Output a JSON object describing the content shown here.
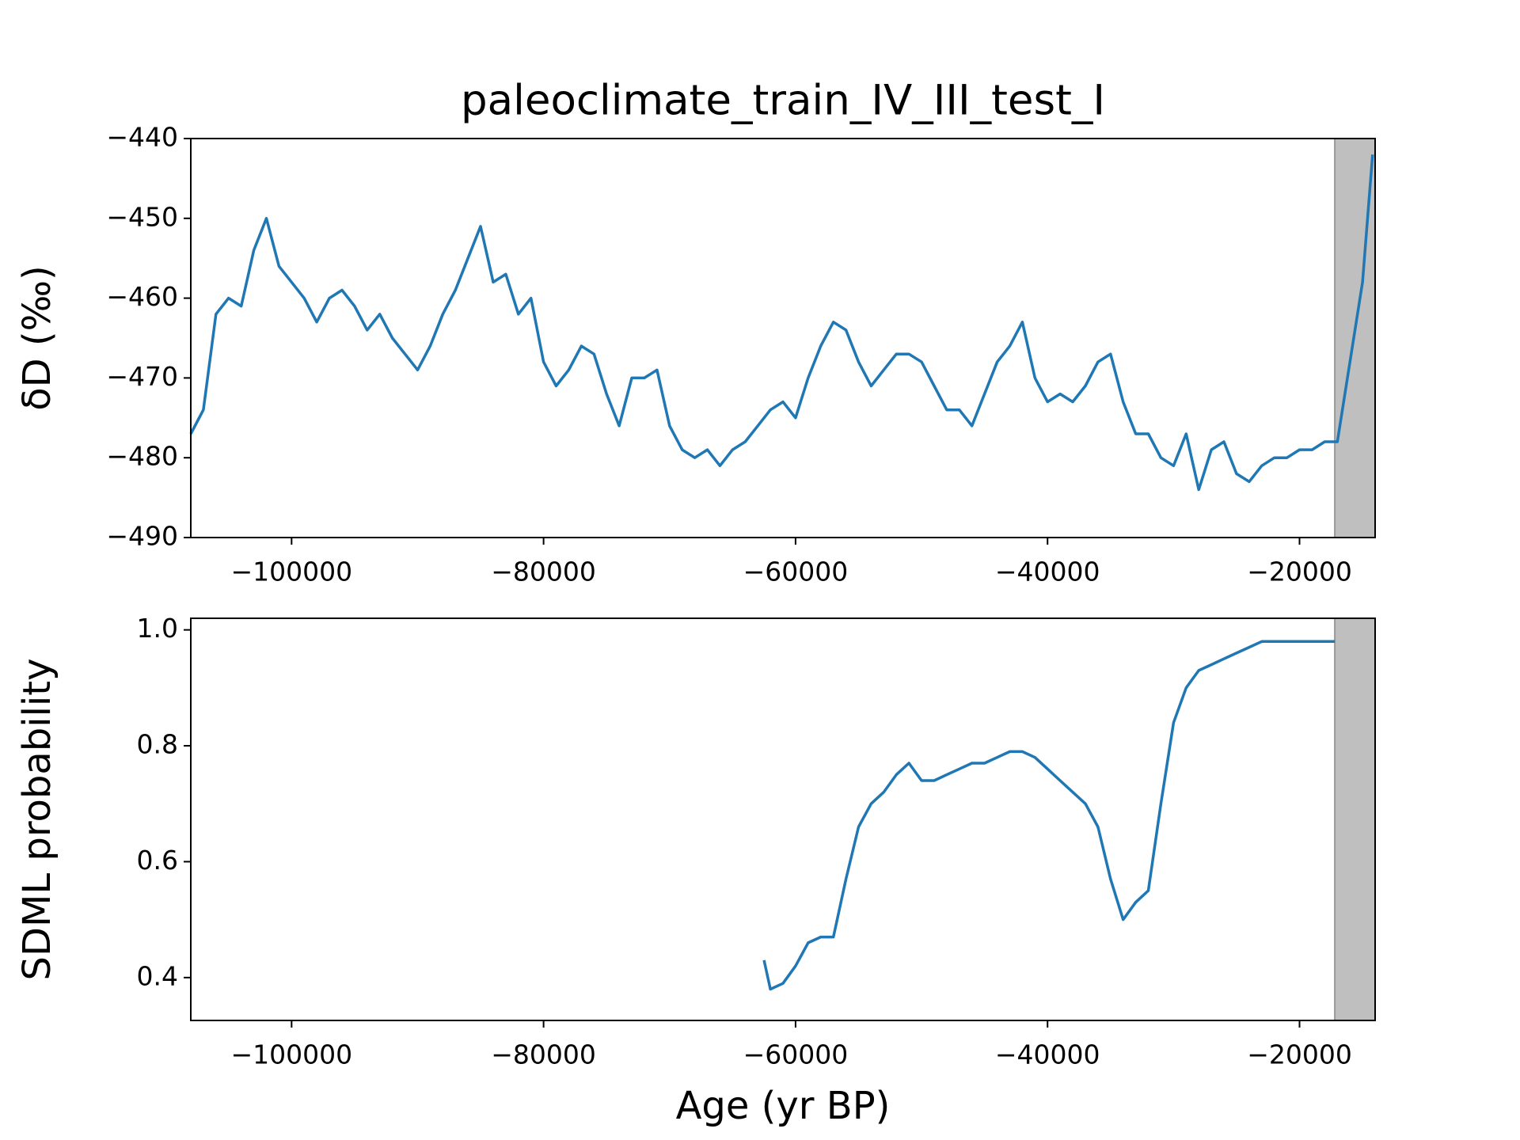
{
  "chart_data": [
    {
      "type": "line",
      "title": "paleoclimate_train_IV_III_test_I",
      "ylabel": "δD (‰)",
      "xlim": [
        -108000,
        -14000
      ],
      "ylim": [
        -490,
        -440
      ],
      "xticks": [
        {
          "value": -100000,
          "label": "−100000"
        },
        {
          "value": -80000,
          "label": "−80000"
        },
        {
          "value": -60000,
          "label": "−60000"
        },
        {
          "value": -40000,
          "label": "−40000"
        },
        {
          "value": -20000,
          "label": "−20000"
        }
      ],
      "yticks": [
        {
          "value": -490,
          "label": "−490"
        },
        {
          "value": -480,
          "label": "−480"
        },
        {
          "value": -470,
          "label": "−470"
        },
        {
          "value": -460,
          "label": "−460"
        },
        {
          "value": -450,
          "label": "−450"
        },
        {
          "value": -440,
          "label": "−440"
        }
      ],
      "shaded_region": [
        -17200,
        -14000
      ],
      "shade_color": "#bfbfbf",
      "series": [
        {
          "color": "#1f77b4",
          "x": [
            -108000,
            -107000,
            -106000,
            -105000,
            -104000,
            -103000,
            -102000,
            -101000,
            -100000,
            -99000,
            -98000,
            -97000,
            -96000,
            -95000,
            -94000,
            -93000,
            -92000,
            -91000,
            -90000,
            -89000,
            -88000,
            -87000,
            -86000,
            -85000,
            -84000,
            -83000,
            -82000,
            -81000,
            -80000,
            -79000,
            -78000,
            -77000,
            -76000,
            -75000,
            -74000,
            -73000,
            -72000,
            -71000,
            -70000,
            -69000,
            -68000,
            -67000,
            -66000,
            -65000,
            -64000,
            -63000,
            -62000,
            -61000,
            -60000,
            -59000,
            -58000,
            -57000,
            -56000,
            -55000,
            -54000,
            -53000,
            -52000,
            -51000,
            -50000,
            -49000,
            -48000,
            -47000,
            -46000,
            -45000,
            -44000,
            -43000,
            -42000,
            -41000,
            -40000,
            -39000,
            -38000,
            -37000,
            -36000,
            -35000,
            -34000,
            -33000,
            -32000,
            -31000,
            -30000,
            -29000,
            -28000,
            -27000,
            -26000,
            -25000,
            -24000,
            -23000,
            -22000,
            -21000,
            -20000,
            -19000,
            -18000,
            -17000,
            -16000,
            -15000,
            -14200
          ],
          "values": [
            -477,
            -474,
            -462,
            -460,
            -461,
            -454,
            -450,
            -456,
            -458,
            -460,
            -463,
            -460,
            -459,
            -461,
            -464,
            -462,
            -465,
            -467,
            -469,
            -466,
            -462,
            -459,
            -455,
            -451,
            -458,
            -457,
            -462,
            -460,
            -468,
            -471,
            -469,
            -466,
            -467,
            -472,
            -476,
            -470,
            -470,
            -469,
            -476,
            -479,
            -480,
            -479,
            -481,
            -479,
            -478,
            -476,
            -474,
            -473,
            -475,
            -470,
            -466,
            -463,
            -464,
            -468,
            -471,
            -469,
            -467,
            -467,
            -468,
            -471,
            -474,
            -474,
            -476,
            -472,
            -468,
            -466,
            -463,
            -470,
            -473,
            -472,
            -473,
            -471,
            -468,
            -467,
            -473,
            -477,
            -477,
            -480,
            -481,
            -477,
            -484,
            -479,
            -478,
            -482,
            -483,
            -481,
            -480,
            -480,
            -479,
            -479,
            -478,
            -478,
            -468,
            -458,
            -442
          ]
        }
      ]
    },
    {
      "type": "line",
      "ylabel": "SDML probability",
      "xlabel": "Age (yr BP)",
      "xlim": [
        -108000,
        -14000
      ],
      "ylim": [
        0.326,
        1.02
      ],
      "xticks": [
        {
          "value": -100000,
          "label": "−100000"
        },
        {
          "value": -80000,
          "label": "−80000"
        },
        {
          "value": -60000,
          "label": "−60000"
        },
        {
          "value": -40000,
          "label": "−40000"
        },
        {
          "value": -20000,
          "label": "−20000"
        }
      ],
      "yticks": [
        0.4,
        0.6,
        0.8,
        {
          "value": 1,
          "label": "1.0"
        }
      ],
      "shaded_region": [
        -17200,
        -14000
      ],
      "shade_color": "#bfbfbf",
      "series": [
        {
          "color": "#1f77b4",
          "x": [
            -62500,
            -62000,
            -61000,
            -60000,
            -59000,
            -58000,
            -57000,
            -56000,
            -55000,
            -54000,
            -53000,
            -52000,
            -51000,
            -50000,
            -49000,
            -48000,
            -47000,
            -46000,
            -45000,
            -44000,
            -43000,
            -42000,
            -41000,
            -40000,
            -39000,
            -38000,
            -37000,
            -36000,
            -35000,
            -34000,
            -33000,
            -32000,
            -31000,
            -30000,
            -29000,
            -28000,
            -27000,
            -26000,
            -25000,
            -24000,
            -23000,
            -22000,
            -21000,
            -20000,
            -19000,
            -18000,
            -17200
          ],
          "values": [
            0.43,
            0.38,
            0.39,
            0.42,
            0.46,
            0.47,
            0.47,
            0.57,
            0.66,
            0.7,
            0.72,
            0.75,
            0.77,
            0.74,
            0.74,
            0.75,
            0.76,
            0.77,
            0.77,
            0.78,
            0.79,
            0.79,
            0.78,
            0.76,
            0.74,
            0.72,
            0.7,
            0.66,
            0.57,
            0.5,
            0.53,
            0.55,
            0.7,
            0.84,
            0.9,
            0.93,
            0.94,
            0.95,
            0.96,
            0.97,
            0.98,
            0.98,
            0.98,
            0.98,
            0.98,
            0.98,
            0.98
          ]
        }
      ]
    }
  ]
}
